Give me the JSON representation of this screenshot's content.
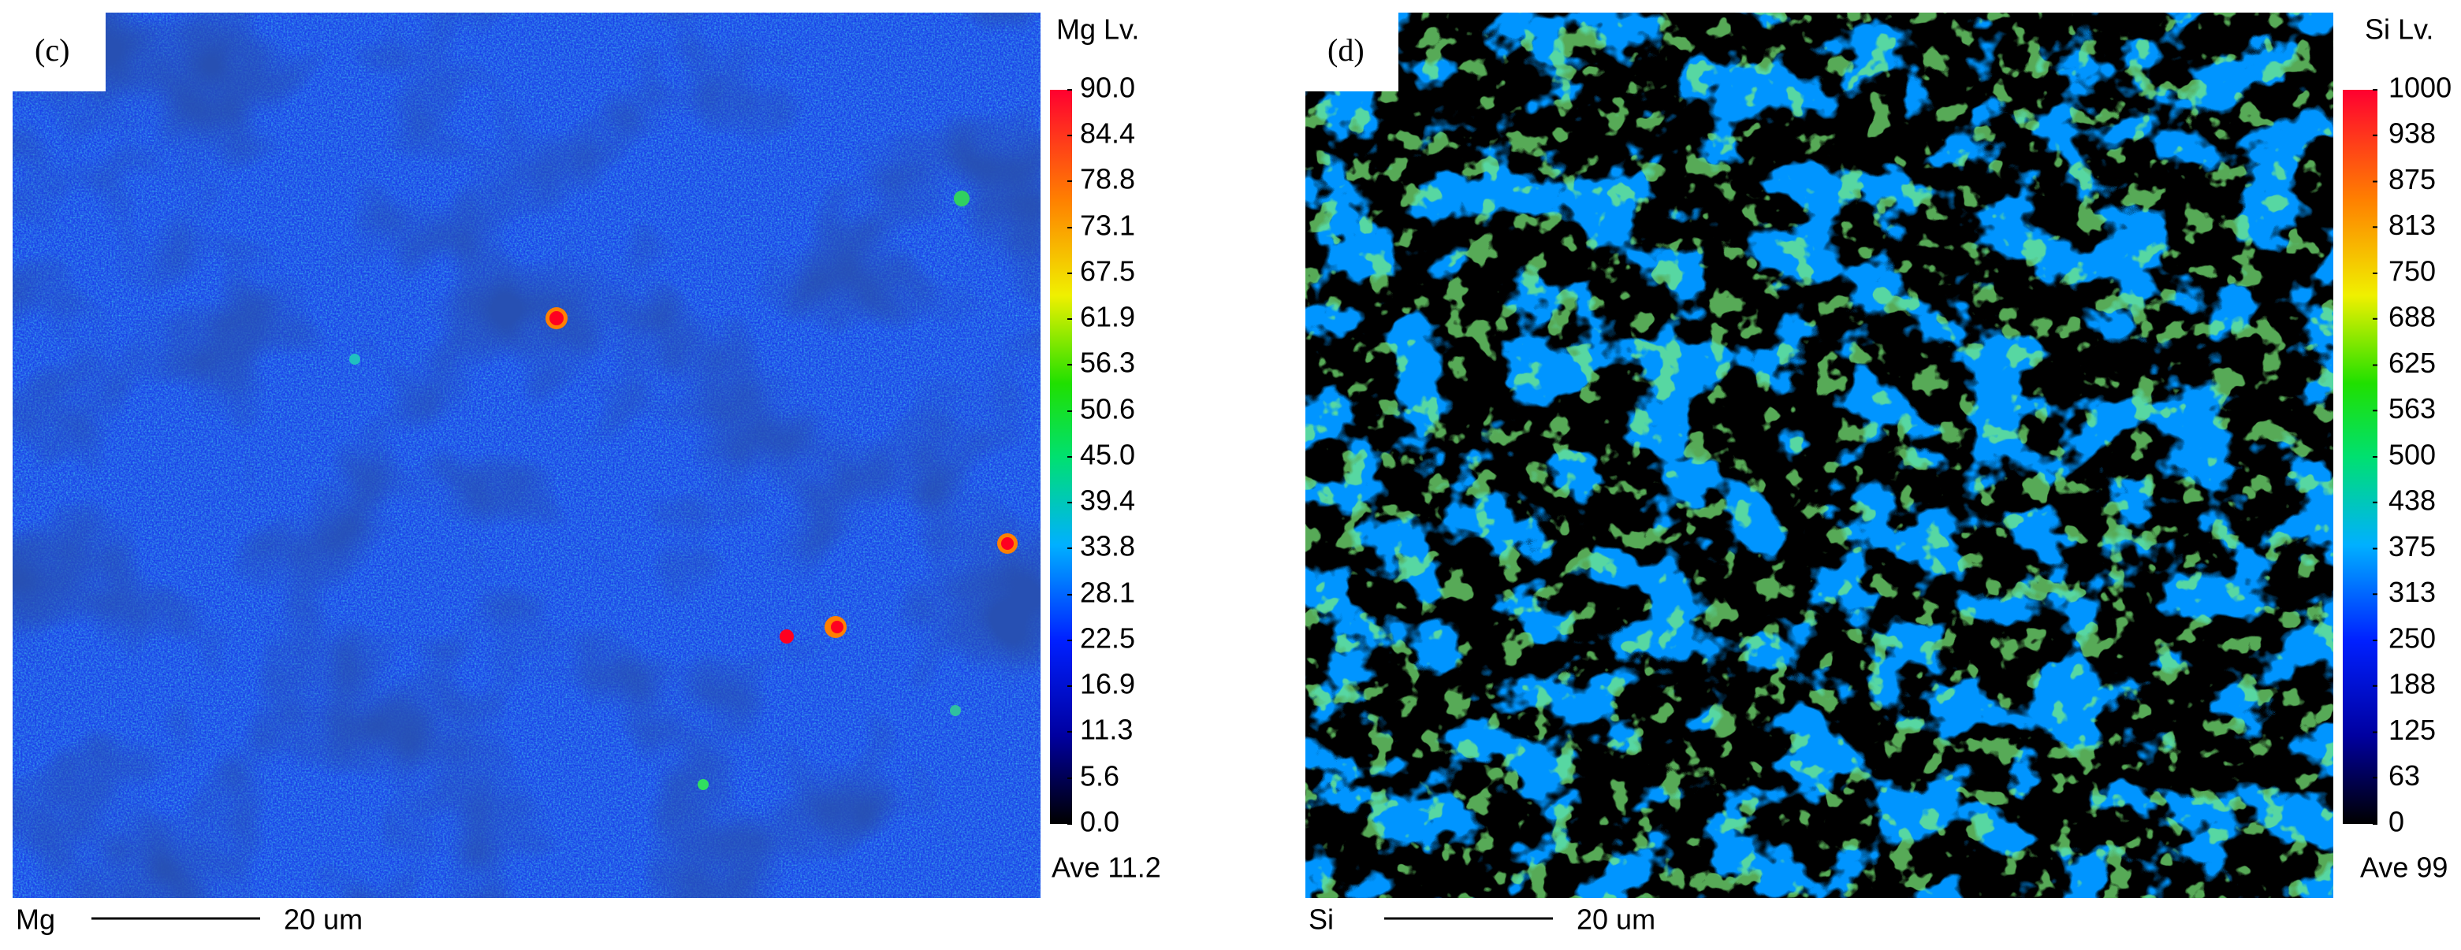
{
  "panels": [
    {
      "label": "(c)",
      "title": "Mg Lv.",
      "average": "Ave 11.2",
      "scale_label": "Mg",
      "scale_length": "20 um",
      "colorbar": {
        "lim": [
          0,
          90
        ],
        "ticks": [
          {
            "value": 90,
            "label": "90.0"
          },
          84.4,
          78.8,
          73.1,
          67.5,
          61.9,
          56.3,
          50.6,
          {
            "value": 45,
            "label": "45.0"
          },
          39.4,
          33.8,
          28.1,
          22.5,
          16.9,
          11.3,
          5.6,
          {
            "value": 0,
            "label": "0.0"
          }
        ]
      }
    },
    {
      "label": "(d)",
      "title": "Si Lv.",
      "average": "Ave 99",
      "scale_label": "Si",
      "scale_length": "20 um",
      "colorbar": {
        "lim": [
          0,
          1000
        ],
        "ticks": [
          1000,
          938,
          875,
          813,
          750,
          688,
          625,
          563,
          500,
          438,
          375,
          313,
          250,
          188,
          125,
          63,
          0
        ]
      }
    }
  ]
}
